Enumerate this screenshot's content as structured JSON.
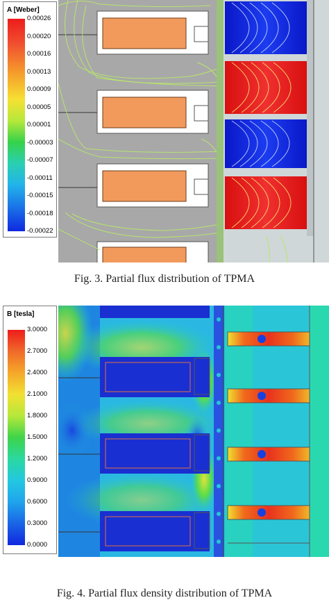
{
  "figure3": {
    "legend_title": "A [Weber]",
    "legend_values": [
      "0.00026",
      "0.00020",
      "0.00016",
      "0.00013",
      "0.00009",
      "0.00005",
      "0.00001",
      "-0.00003",
      "-0.00007",
      "-0.00011",
      "-0.00015",
      "-0.00018",
      "-0.00022"
    ],
    "caption": "Fig. 3.   Partial flux distribution of TPMA",
    "colors": {
      "coil": "#f29a5c",
      "core": "#a9a9a9",
      "pm_negative": "#1530e6",
      "pm_positive": "#ec1c1c",
      "contour": "#b8e86a"
    }
  },
  "figure4": {
    "legend_title": "B [tesla]",
    "legend_values": [
      "3.0000",
      "2.7000",
      "2.4000",
      "2.1000",
      "1.8000",
      "1.5000",
      "1.2000",
      "0.9000",
      "0.6000",
      "0.3000",
      "0.0000"
    ],
    "caption": "Fig. 4.   Partial flux density distribution of TPMA",
    "colors": {
      "slot": "#1a2fd1",
      "field_low": "#22a9e0",
      "field_mid": "#22e0c8",
      "field_high": "#e8321e"
    }
  }
}
